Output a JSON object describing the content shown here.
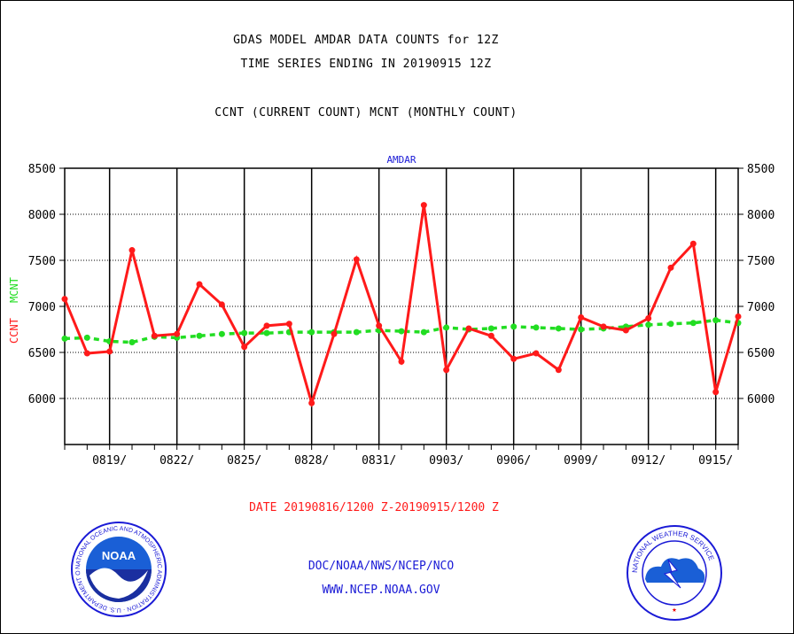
{
  "titles": {
    "line1": "GDAS MODEL AMDAR DATA COUNTS for 12Z",
    "line2": "TIME SERIES ENDING IN 20190915 12Z",
    "line3": "CCNT (CURRENT COUNT) MCNT (MONTHLY COUNT)"
  },
  "footer": {
    "date_range": "DATE 20190816/1200 Z-20190915/1200 Z",
    "org": "DOC/NOAA/NWS/NCEP/NCO",
    "url": "WWW.NCEP.NOAA.GOV"
  },
  "logos": {
    "noaa_text": "NOAA",
    "noaa_ring": "NATIONAL OCEANIC AND ATMOSPHERIC ADMINISTRATION · U.S. DEPARTMENT OF COMMERCE",
    "nws_ring": "NATIONAL WEATHER SERVICE"
  },
  "colors": {
    "ccnt": "#ff1a1a",
    "mcnt": "#22dd22",
    "header": "#1a1ad6",
    "footer_red": "#ff1a1a",
    "footer_blue": "#1a1ad6"
  },
  "chart_data": {
    "type": "line",
    "header": "AMDAR",
    "ylabel_ccnt": "CCNT",
    "ylabel_mcnt": "MCNT",
    "ylim": [
      5500,
      8500
    ],
    "yticks": [
      6000,
      6500,
      7000,
      7500,
      8000,
      8500
    ],
    "grid": true,
    "x_index_range": [
      0,
      30
    ],
    "xtick_index": [
      2,
      5,
      8,
      11,
      14,
      17,
      20,
      23,
      26,
      29
    ],
    "xtick_labels": [
      "0819/",
      "0822/",
      "0825/",
      "0828/",
      "0831/",
      "0903/",
      "0906/",
      "0909/",
      "0912/",
      "0915/"
    ],
    "series": [
      {
        "name": "CCNT",
        "values": [
          7080,
          6490,
          6510,
          7610,
          6680,
          6700,
          7240,
          7020,
          6560,
          6790,
          6810,
          5950,
          6700,
          7510,
          6790,
          6400,
          8100,
          6310,
          6760,
          6680,
          6430,
          6490,
          6310,
          6880,
          6780,
          6740,
          6870,
          7420,
          7680,
          6070,
          6890
        ]
      },
      {
        "name": "MCNT",
        "values": [
          6650,
          6660,
          6620,
          6610,
          6670,
          6660,
          6680,
          6700,
          6710,
          6710,
          6720,
          6720,
          6720,
          6720,
          6740,
          6730,
          6720,
          6770,
          6750,
          6760,
          6780,
          6770,
          6760,
          6750,
          6760,
          6780,
          6800,
          6810,
          6820,
          6850,
          6820
        ]
      }
    ]
  }
}
